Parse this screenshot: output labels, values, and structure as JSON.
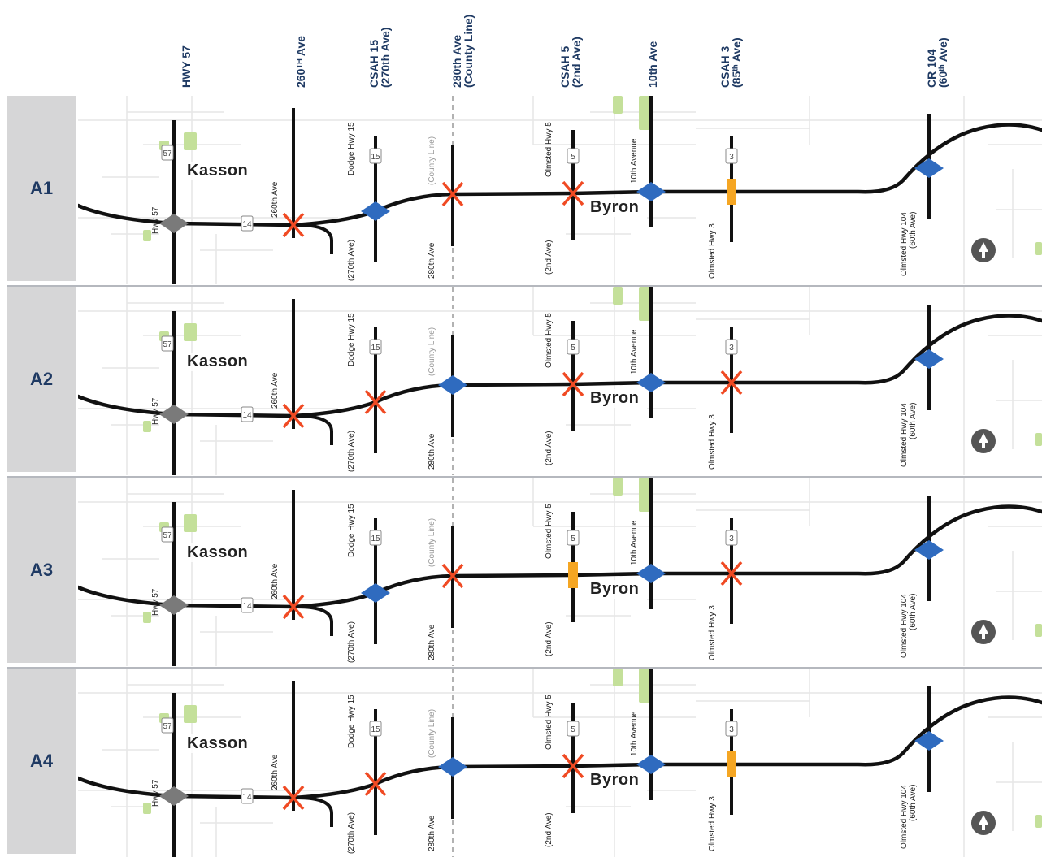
{
  "columns": [
    {
      "id": "hwy57",
      "lines": [
        "HWY 57"
      ]
    },
    {
      "id": "260th",
      "lines": [
        "260ᵀᴴ Ave"
      ]
    },
    {
      "id": "csah15",
      "lines": [
        "CSAH 15",
        "(270th Ave)"
      ]
    },
    {
      "id": "280th",
      "lines": [
        "280th Ave",
        "(County Line)"
      ]
    },
    {
      "id": "csah5",
      "lines": [
        "CSAH 5",
        "(2nd Ave)"
      ]
    },
    {
      "id": "10th",
      "lines": [
        "10th Ave"
      ]
    },
    {
      "id": "csah3",
      "lines": [
        "CSAH 3",
        "(85ᵗʰ Ave)"
      ]
    },
    {
      "id": "cr104",
      "lines": [
        "CR 104",
        "(60ᵗʰ Ave)"
      ]
    }
  ],
  "map_labels": {
    "kasson": "Kasson",
    "byron": "Byron",
    "hwy57": "Hwy 57",
    "ave260": "260th Ave",
    "dodge15": "Dodge Hwy 15",
    "ave270": "(270th Ave)",
    "county_line": "(County Line)",
    "ave280": "280th Ave",
    "olmsted5": "Olmsted Hwy 5",
    "ave2nd": "(2nd Ave)",
    "tenth": "10th Avenue",
    "olmsted3": "Olmsted Hwy 3",
    "olmsted104": "Olmsted Hwy 104",
    "ave60": "(60th Ave)",
    "shield57": "57",
    "shield14": "14",
    "shield15": "15",
    "shield5": "5",
    "shield3": "3"
  },
  "alternatives": [
    {
      "label": "A1",
      "treatments": [
        "interchange",
        "closed",
        "interchange",
        "closed",
        "closed",
        "interchange",
        "riro",
        "interchange"
      ]
    },
    {
      "label": "A2",
      "treatments": [
        "interchange",
        "closed",
        "closed",
        "interchange",
        "closed",
        "interchange",
        "closed",
        "interchange"
      ]
    },
    {
      "label": "A3",
      "treatments": [
        "interchange",
        "closed",
        "interchange",
        "closed",
        "riro",
        "interchange",
        "closed",
        "interchange"
      ]
    },
    {
      "label": "A4",
      "treatments": [
        "interchange",
        "closed",
        "closed",
        "interchange",
        "closed",
        "interchange",
        "riro",
        "interchange"
      ]
    }
  ],
  "legend_semantics": {
    "interchange": "diamond",
    "closed": "x-mark",
    "riro": "orange-bar",
    "hwy57": "gray-diamond"
  },
  "colors": {
    "header_text": "#1f3a63",
    "row_label_bg": "#d6d6d7",
    "interchange": "#2f6bbf",
    "closed": "#f04a23",
    "riro": "#f5a623",
    "hwy57_node": "#7a7a7a",
    "road": "#111111"
  }
}
